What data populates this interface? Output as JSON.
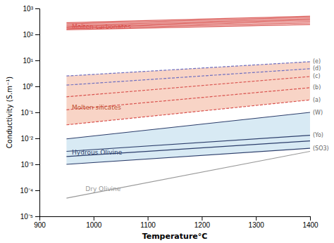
{
  "chart_data": {
    "type": "line",
    "xlabel": "Temperature°C",
    "ylabel": "Conductivity (S.m⁻¹)",
    "log": "y",
    "grid": false,
    "xlim": [
      900,
      1400
    ],
    "ylim": [
      1e-05,
      1000
    ],
    "xticks": [
      900,
      1000,
      1100,
      1200,
      1300,
      1400
    ],
    "yticks": [
      {
        "value": 1e-05,
        "label": "10⁻⁵"
      },
      {
        "value": 0.0001,
        "label": "10⁻⁴"
      },
      {
        "value": 0.001,
        "label": "10⁻³"
      },
      {
        "value": 0.01,
        "label": "10⁻²"
      },
      {
        "value": 0.1,
        "label": "10⁻¹"
      },
      {
        "value": 1,
        "label": "10⁰"
      },
      {
        "value": 10,
        "label": "10¹"
      },
      {
        "value": 100,
        "label": "10²"
      },
      {
        "value": 1000,
        "label": "10³"
      }
    ],
    "x": [
      950,
      1400
    ],
    "bands": [
      {
        "color": "#f0a080",
        "upper": [
          2.51189,
          8.91251
        ],
        "lower": [
          0.0331131,
          0.301995
        ]
      },
      {
        "color": "#a8d0e6",
        "upper": [
          0.00954993,
          0.1
        ],
        "lower": [
          0.001,
          0.00416869
        ]
      }
    ],
    "series": [
      {
        "color": "#d9534f",
        "line_style": "solid",
        "values": [
          151.356,
          239.883
        ]
      },
      {
        "color": "#d9534f",
        "line_style": "solid",
        "values": [
          165.959,
          275.423
        ]
      },
      {
        "color": "#d9534f",
        "line_style": "solid",
        "values": [
          181.97,
          316.228
        ]
      },
      {
        "color": "#d9534f",
        "line_style": "solid",
        "values": [
          199.526,
          354.813
        ]
      },
      {
        "color": "#d9534f",
        "line_style": "solid",
        "values": [
          223.872,
          398.107
        ]
      },
      {
        "color": "#d9534f",
        "line_style": "solid",
        "values": [
          251.189,
          446.684
        ]
      },
      {
        "color": "#d9534f",
        "line_style": "solid",
        "values": [
          281.838,
          501.187
        ]
      },
      {
        "name": "(a)",
        "color": "#d9534f",
        "line_style": "dashed",
        "values": [
          0.0331131,
          0.301995
        ]
      },
      {
        "name": "(b)",
        "color": "#d9534f",
        "line_style": "dashed",
        "values": [
          0.125893,
          0.891251
        ]
      },
      {
        "name": "(c)",
        "color": "#d9534f",
        "line_style": "dashed",
        "values": [
          0.398107,
          2.39883
        ]
      },
      {
        "name": "(d)",
        "color": "#7070c0",
        "line_style": "dashed",
        "values": [
          1.12202,
          4.7863
        ]
      },
      {
        "name": "(e)",
        "color": "#7070c0",
        "line_style": "dashed",
        "values": [
          2.51189,
          8.91251
        ]
      },
      {
        "name": "(W)",
        "color": "#2c3e6b",
        "line_style": "solid",
        "values": [
          0.00954993,
          0.1
        ]
      },
      {
        "name": "(Yo)",
        "color": "#2c3e6b",
        "line_style": "solid",
        "values": [
          0.00316228,
          0.0131826
        ]
      },
      {
        "color": "#2c3e6b",
        "line_style": "solid",
        "values": [
          0.00199526,
          0.00794328
        ]
      },
      {
        "name": "(SO3)",
        "color": "#2c3e6b",
        "line_style": "solid",
        "values": [
          0.001,
          0.00416869
        ]
      },
      {
        "color": "#999999",
        "line_style": "solid",
        "values": [
          5.01187e-05,
          0.00316228
        ]
      }
    ],
    "annotations": [
      {
        "text": "Molten carbonates",
        "color": "#d9534f",
        "x": 960,
        "y": 190.546
      },
      {
        "text": "Molten silicates",
        "color": "#c05030",
        "x": 960,
        "y": 0.151356
      },
      {
        "text": "Hydrous Olivine",
        "color": "#2c3e6b",
        "x": 960,
        "y": 0.00281838
      },
      {
        "text": "Dry Olivine",
        "color": "#999999",
        "x": 985,
        "y": 0.000112202
      }
    ]
  }
}
